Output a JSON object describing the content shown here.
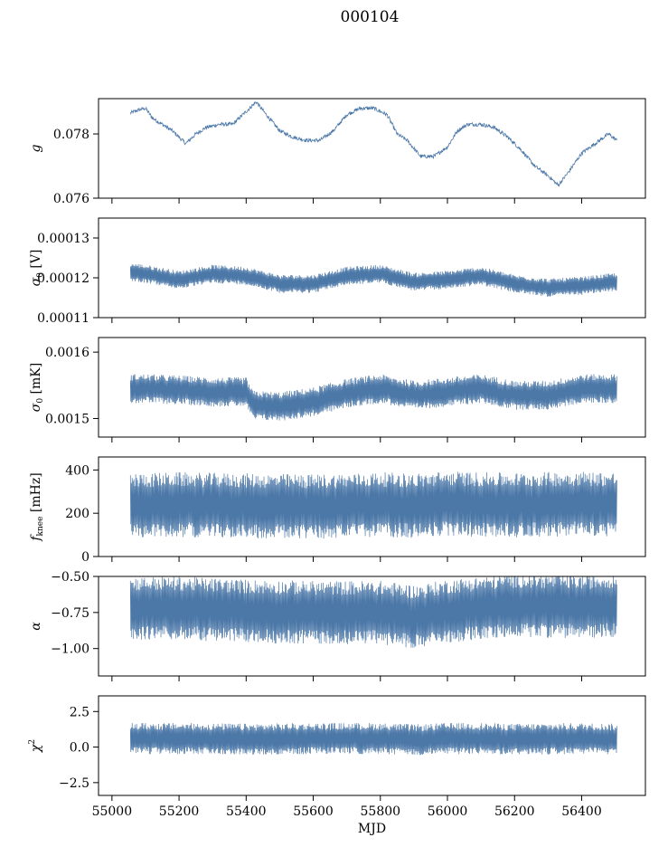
{
  "figure": {
    "title": "000104"
  },
  "colors": {
    "series": "#4c78a8",
    "axis": "#000000",
    "background": "#ffffff"
  },
  "chart_data": [
    {
      "type": "line",
      "ylabel": "g",
      "ylabel_parts": [
        {
          "t": "g",
          "italic": true
        }
      ],
      "xlim": [
        54960,
        56590
      ],
      "ylim": [
        0.076,
        0.0791
      ],
      "yticks": [
        0.076,
        0.078
      ],
      "ytick_labels": [
        "0.076",
        "0.078"
      ],
      "series": [
        {
          "x": [
            55055,
            55080,
            55100,
            55120,
            55150,
            55180,
            55220,
            55250,
            55280,
            55320,
            55360,
            55400,
            55430,
            55460,
            55500,
            55540,
            55580,
            55620,
            55660,
            55700,
            55740,
            55780,
            55820,
            55850,
            55880,
            55920,
            55960,
            56000,
            56030,
            56060,
            56100,
            56140,
            56180,
            56220,
            56260,
            56300,
            56330,
            56360,
            56400,
            56440,
            56480,
            56505
          ],
          "y": [
            0.07865,
            0.07875,
            0.0788,
            0.0785,
            0.0783,
            0.0781,
            0.0777,
            0.078,
            0.0782,
            0.0783,
            0.0783,
            0.0787,
            0.079,
            0.0786,
            0.0781,
            0.0779,
            0.0778,
            0.0778,
            0.0781,
            0.0786,
            0.0788,
            0.0788,
            0.0786,
            0.078,
            0.0778,
            0.0773,
            0.0773,
            0.0776,
            0.0781,
            0.0783,
            0.0783,
            0.0782,
            0.0779,
            0.0775,
            0.077,
            0.0767,
            0.0764,
            0.0768,
            0.0774,
            0.0777,
            0.078,
            0.0778
          ]
        }
      ]
    },
    {
      "type": "line",
      "ylabel": "σ0 [V]",
      "ylabel_parts": [
        {
          "t": "σ",
          "italic": true
        },
        {
          "t": "0",
          "sub": true
        },
        {
          "t": " [V]"
        }
      ],
      "xlim": [
        54960,
        56590
      ],
      "ylim": [
        0.00011,
        0.000135
      ],
      "yticks": [
        0.00011,
        0.00012,
        0.00013
      ],
      "ytick_labels": [
        "0.00011",
        "0.00012",
        "0.00013"
      ],
      "series": [
        {
          "x": [
            55055,
            55100,
            55200,
            55300,
            55400,
            55500,
            55600,
            55700,
            55800,
            55900,
            55910,
            56000,
            56100,
            56200,
            56300,
            56400,
            56505
          ],
          "y": [
            0.0001215,
            0.000121,
            0.0001195,
            0.000121,
            0.0001205,
            0.0001185,
            0.0001185,
            0.0001205,
            0.000121,
            0.000119,
            0.000119,
            0.0001195,
            0.0001205,
            0.0001185,
            0.0001175,
            0.000118,
            0.000119
          ]
        }
      ]
    },
    {
      "type": "line",
      "ylabel": "σ0 [mK]",
      "ylabel_parts": [
        {
          "t": "σ",
          "italic": true
        },
        {
          "t": "0",
          "sub": true
        },
        {
          "t": " [mK]"
        }
      ],
      "xlim": [
        54960,
        56590
      ],
      "ylim": [
        0.001472,
        0.001622
      ],
      "yticks": [
        0.0015,
        0.0016
      ],
      "ytick_labels": [
        "0.0015",
        "0.0016"
      ],
      "series": [
        {
          "x": [
            55055,
            55100,
            55200,
            55300,
            55400,
            55420,
            55500,
            55600,
            55700,
            55800,
            55900,
            56000,
            56100,
            56200,
            56300,
            56400,
            56505
          ],
          "y": [
            0.001545,
            0.001545,
            0.001543,
            0.00154,
            0.00154,
            0.00152,
            0.001518,
            0.001525,
            0.001538,
            0.001545,
            0.001535,
            0.00154,
            0.001545,
            0.001535,
            0.001535,
            0.001545,
            0.001545
          ]
        }
      ]
    },
    {
      "type": "line",
      "ylabel": "fknee [mHz]",
      "ylabel_parts": [
        {
          "t": "f",
          "italic": true
        },
        {
          "t": "knee",
          "sub": true
        },
        {
          "t": " [mHz]"
        }
      ],
      "xlim": [
        54960,
        56590
      ],
      "ylim": [
        0,
        460
      ],
      "yticks": [
        0,
        200,
        400
      ],
      "ytick_labels": [
        "0",
        "200",
        "400"
      ],
      "series": [
        {
          "x": [
            55055,
            55200,
            55400,
            55600,
            55800,
            55910,
            56000,
            56100,
            56200,
            56400,
            56505
          ],
          "y": [
            235,
            240,
            235,
            230,
            240,
            235,
            245,
            240,
            238,
            245,
            240
          ]
        }
      ]
    },
    {
      "type": "line",
      "ylabel": "α",
      "ylabel_parts": [
        {
          "t": "α",
          "italic": true
        }
      ],
      "xlim": [
        54960,
        56590
      ],
      "ylim": [
        -1.19,
        -0.5
      ],
      "yticks": [
        -1.0,
        -0.75,
        -0.5
      ],
      "ytick_labels": [
        "−1.00",
        "−0.75",
        "−0.50"
      ],
      "series": [
        {
          "x": [
            55055,
            55200,
            55400,
            55600,
            55800,
            55910,
            56000,
            56100,
            56200,
            56400,
            56505
          ],
          "y": [
            -0.72,
            -0.72,
            -0.74,
            -0.75,
            -0.75,
            -0.78,
            -0.74,
            -0.72,
            -0.7,
            -0.71,
            -0.7
          ]
        }
      ]
    },
    {
      "type": "line",
      "ylabel": "χ2",
      "ylabel_parts": [
        {
          "t": "χ",
          "italic": true
        },
        {
          "t": "2",
          "sup": true
        }
      ],
      "xlim": [
        54960,
        56590
      ],
      "ylim": [
        -3.4,
        3.6
      ],
      "yticks": [
        -2.5,
        0.0,
        2.5
      ],
      "ytick_labels": [
        "−2.5",
        "0.0",
        "2.5"
      ],
      "xticks": [
        55000,
        55200,
        55400,
        55600,
        55800,
        56000,
        56200,
        56400
      ],
      "xtick_labels": [
        "55000",
        "55200",
        "55400",
        "55600",
        "55800",
        "56000",
        "56200",
        "56400"
      ],
      "xlabel": "MJD",
      "series": [
        {
          "x": [
            55055,
            55200,
            55400,
            55600,
            55800,
            55910,
            56000,
            56100,
            56200,
            56400,
            56505
          ],
          "y": [
            0.6,
            0.6,
            0.55,
            0.6,
            0.6,
            0.5,
            0.6,
            0.6,
            0.55,
            0.6,
            0.55
          ]
        }
      ]
    }
  ]
}
